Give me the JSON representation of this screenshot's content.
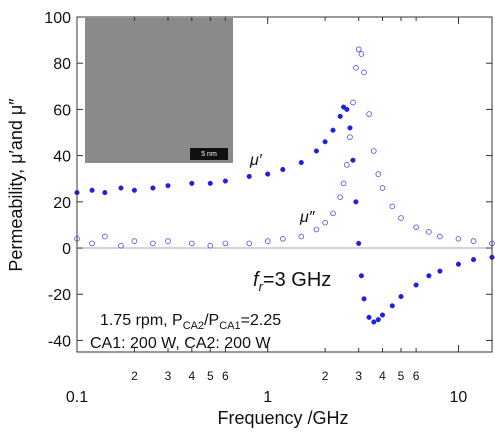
{
  "chart_data": {
    "type": "scatter",
    "x_label": "Frequency /GHz",
    "y_label": "Permeability, μ′and μ″",
    "x": [
      0.1,
      0.12,
      0.14,
      0.17,
      0.2,
      0.25,
      0.3,
      0.4,
      0.5,
      0.6,
      0.8,
      1,
      1.2,
      1.5,
      1.8,
      2,
      2.2,
      2.4,
      2.5,
      2.6,
      2.7,
      2.8,
      2.9,
      3,
      3.1,
      3.2,
      3.4,
      3.6,
      3.8,
      4,
      4.5,
      5,
      6,
      7,
      8,
      10,
      12,
      15
    ],
    "series": [
      {
        "name": "μ′",
        "color": "#1f1fe6",
        "marker": "filled",
        "values": [
          24,
          25,
          24,
          26,
          25,
          26,
          27,
          28,
          28,
          29,
          31,
          32,
          34,
          37,
          42,
          46,
          51,
          57,
          61,
          60,
          52,
          38,
          20,
          2,
          -12,
          -22,
          -30,
          -32,
          -31,
          -29,
          -25,
          -21,
          -16,
          -12,
          -10,
          -7,
          -5,
          -4
        ]
      },
      {
        "name": "μ″",
        "color": "#4a4aee",
        "marker": "open",
        "values": [
          4,
          2,
          5,
          1,
          3,
          2,
          3,
          2,
          1,
          2,
          2,
          3,
          4,
          5,
          8,
          11,
          15,
          22,
          28,
          36,
          48,
          63,
          78,
          86,
          84,
          76,
          58,
          42,
          32,
          26,
          18,
          13,
          9,
          7,
          5,
          4,
          3,
          2
        ]
      }
    ],
    "xlim": [
      0.1,
      15
    ],
    "x_log": true,
    "xticks": [
      0.1,
      1,
      10
    ],
    "xminor_ticks": [
      {
        "value": 0.2,
        "label": "2"
      },
      {
        "value": 0.3,
        "label": "3"
      },
      {
        "value": 0.4,
        "label": "4"
      },
      {
        "value": 0.5,
        "label": "5"
      },
      {
        "value": 0.6,
        "label": "6"
      },
      2,
      3,
      4,
      5,
      6
    ],
    "ylim": [
      -45,
      100
    ],
    "yticks": [
      100,
      80,
      60,
      40,
      20,
      0,
      -20,
      -40
    ],
    "zero_line": true,
    "annotations": {
      "fr": [
        "f",
        "r",
        "=3 GHz"
      ],
      "cond1": [
        "1.75 rpm, P",
        "CA2",
        "/P",
        "CA1",
        "=2.25"
      ],
      "cond2": "CA1: 200 W, CA2: 200 W",
      "scale_bar": "5 nm"
    }
  }
}
